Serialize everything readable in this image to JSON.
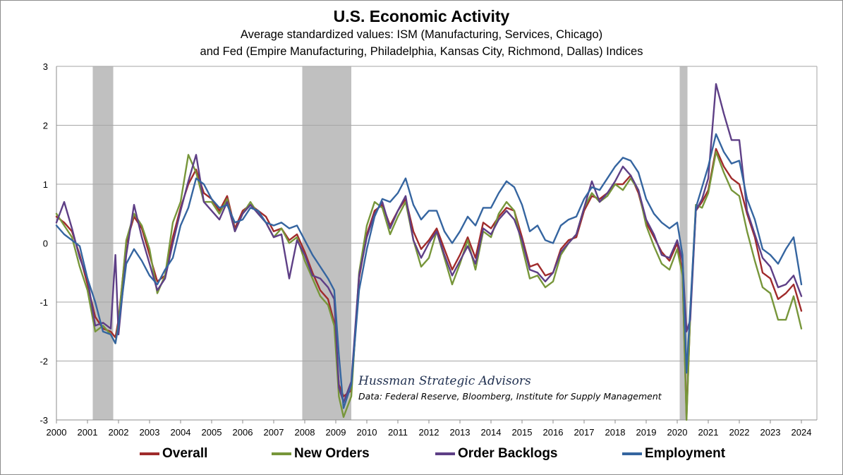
{
  "chart_data": {
    "type": "line",
    "title": "U.S. Economic Activity",
    "subtitle_line1": "Average standardized values: ISM (Manufacturing, Services, Chicago)",
    "subtitle_line2": "and Fed (Empire Manufacturing, Philadelphia, Kansas City, Richmond, Dallas) Indices",
    "x_tick_labels": [
      "2000",
      "2001",
      "2002",
      "2003",
      "2004",
      "2005",
      "2006",
      "2007",
      "2008",
      "2009",
      "2010",
      "2011",
      "2012",
      "2013",
      "2014",
      "2015",
      "2016",
      "2017",
      "2018",
      "2019",
      "2020",
      "2021",
      "2022",
      "2023",
      "2024"
    ],
    "y_tick_labels": [
      "3",
      "2",
      "1",
      "0",
      "-1",
      "-2",
      "-3"
    ],
    "xlim": [
      2000,
      2024.5
    ],
    "ylim": [
      -3,
      3
    ],
    "grid": "horizontal",
    "legend_position": "bottom",
    "recession_shading": [
      [
        2001.17,
        2001.83
      ],
      [
        2007.92,
        2009.5
      ],
      [
        2020.08,
        2020.33
      ]
    ],
    "annotation_title": "Hussman Strategic Advisors",
    "annotation_source": "Data: Federal Reserve, Bloomberg, Institute for Supply Management",
    "series": [
      {
        "name": "Overall",
        "color": "#a02b2b",
        "x": [
          2000.0,
          2000.25,
          2000.5,
          2000.75,
          2001.0,
          2001.25,
          2001.5,
          2001.75,
          2001.9,
          2002.0,
          2002.25,
          2002.5,
          2002.75,
          2003.0,
          2003.25,
          2003.5,
          2003.75,
          2004.0,
          2004.25,
          2004.5,
          2004.75,
          2005.0,
          2005.25,
          2005.5,
          2005.75,
          2006.0,
          2006.25,
          2006.5,
          2006.75,
          2007.0,
          2007.25,
          2007.5,
          2007.75,
          2008.0,
          2008.25,
          2008.5,
          2008.75,
          2008.95,
          2009.1,
          2009.25,
          2009.5,
          2009.75,
          2010.0,
          2010.25,
          2010.5,
          2010.75,
          2011.0,
          2011.25,
          2011.5,
          2011.75,
          2012.0,
          2012.25,
          2012.5,
          2012.75,
          2013.0,
          2013.25,
          2013.5,
          2013.75,
          2014.0,
          2014.25,
          2014.5,
          2014.75,
          2015.0,
          2015.25,
          2015.5,
          2015.75,
          2016.0,
          2016.25,
          2016.5,
          2016.75,
          2017.0,
          2017.25,
          2017.5,
          2017.75,
          2018.0,
          2018.25,
          2018.5,
          2018.75,
          2019.0,
          2019.25,
          2019.5,
          2019.75,
          2020.0,
          2020.17,
          2020.3,
          2020.42,
          2020.6,
          2020.8,
          2021.0,
          2021.25,
          2021.5,
          2021.75,
          2022.0,
          2022.25,
          2022.5,
          2022.75,
          2023.0,
          2023.25,
          2023.5,
          2023.75,
          2024.0
        ],
        "y": [
          0.45,
          0.35,
          0.2,
          -0.2,
          -0.7,
          -1.25,
          -1.45,
          -1.5,
          -1.6,
          -1.3,
          0.0,
          0.45,
          0.25,
          -0.2,
          -0.65,
          -0.55,
          0.1,
          0.6,
          1.0,
          1.25,
          0.85,
          0.75,
          0.55,
          0.8,
          0.25,
          0.55,
          0.65,
          0.55,
          0.45,
          0.2,
          0.25,
          0.05,
          0.15,
          -0.15,
          -0.5,
          -0.8,
          -0.95,
          -1.35,
          -2.4,
          -2.6,
          -2.5,
          -0.6,
          0.15,
          0.55,
          0.65,
          0.3,
          0.55,
          0.75,
          0.2,
          -0.1,
          0.05,
          0.25,
          -0.1,
          -0.45,
          -0.2,
          0.1,
          -0.25,
          0.35,
          0.25,
          0.45,
          0.6,
          0.55,
          0.1,
          -0.4,
          -0.35,
          -0.55,
          -0.5,
          -0.1,
          0.05,
          0.1,
          0.55,
          0.8,
          0.75,
          0.85,
          1.0,
          1.0,
          1.15,
          0.85,
          0.35,
          0.1,
          -0.15,
          -0.3,
          0.0,
          -0.5,
          -2.95,
          -1.2,
          0.55,
          0.7,
          0.9,
          1.6,
          1.3,
          1.1,
          1.0,
          0.5,
          0.1,
          -0.5,
          -0.6,
          -0.95,
          -0.85,
          -0.7,
          -1.15
        ]
      },
      {
        "name": "New Orders",
        "color": "#77963a",
        "x": [
          2000.0,
          2000.25,
          2000.5,
          2000.75,
          2001.0,
          2001.25,
          2001.5,
          2001.75,
          2001.9,
          2002.0,
          2002.25,
          2002.5,
          2002.75,
          2003.0,
          2003.25,
          2003.5,
          2003.75,
          2004.0,
          2004.25,
          2004.5,
          2004.75,
          2005.0,
          2005.25,
          2005.5,
          2005.75,
          2006.0,
          2006.25,
          2006.5,
          2006.75,
          2007.0,
          2007.25,
          2007.5,
          2007.75,
          2008.0,
          2008.25,
          2008.5,
          2008.75,
          2008.95,
          2009.1,
          2009.25,
          2009.5,
          2009.75,
          2010.0,
          2010.25,
          2010.5,
          2010.75,
          2011.0,
          2011.25,
          2011.5,
          2011.75,
          2012.0,
          2012.25,
          2012.5,
          2012.75,
          2013.0,
          2013.25,
          2013.5,
          2013.75,
          2014.0,
          2014.25,
          2014.5,
          2014.75,
          2015.0,
          2015.25,
          2015.5,
          2015.75,
          2016.0,
          2016.25,
          2016.5,
          2016.75,
          2017.0,
          2017.25,
          2017.5,
          2017.75,
          2018.0,
          2018.25,
          2018.5,
          2018.75,
          2019.0,
          2019.25,
          2019.5,
          2019.75,
          2020.0,
          2020.17,
          2020.3,
          2020.42,
          2020.6,
          2020.8,
          2021.0,
          2021.25,
          2021.5,
          2021.75,
          2022.0,
          2022.25,
          2022.5,
          2022.75,
          2023.0,
          2023.25,
          2023.5,
          2023.75,
          2024.0
        ],
        "y": [
          0.5,
          0.3,
          0.1,
          -0.4,
          -0.8,
          -1.5,
          -1.4,
          -1.55,
          -1.7,
          -1.35,
          0.05,
          0.5,
          0.3,
          -0.1,
          -0.85,
          -0.55,
          0.35,
          0.7,
          1.5,
          1.2,
          0.7,
          0.7,
          0.5,
          0.75,
          0.2,
          0.5,
          0.7,
          0.5,
          0.35,
          0.1,
          0.25,
          0.0,
          0.1,
          -0.3,
          -0.6,
          -0.9,
          -1.05,
          -1.4,
          -2.6,
          -2.95,
          -2.6,
          -0.5,
          0.3,
          0.7,
          0.6,
          0.15,
          0.45,
          0.7,
          0.05,
          -0.4,
          -0.25,
          0.2,
          -0.25,
          -0.7,
          -0.35,
          0.05,
          -0.45,
          0.2,
          0.1,
          0.5,
          0.7,
          0.55,
          -0.05,
          -0.6,
          -0.55,
          -0.75,
          -0.65,
          -0.2,
          0.0,
          0.15,
          0.6,
          0.85,
          0.7,
          0.8,
          1.0,
          0.9,
          1.1,
          0.9,
          0.3,
          -0.05,
          -0.35,
          -0.45,
          -0.1,
          -0.55,
          -3.0,
          -1.2,
          0.65,
          0.6,
          0.85,
          1.55,
          1.2,
          0.9,
          0.8,
          0.2,
          -0.3,
          -0.75,
          -0.85,
          -1.3,
          -1.3,
          -0.9,
          -1.45
        ]
      },
      {
        "name": "Order Backlogs",
        "color": "#5e3f86",
        "x": [
          2000.0,
          2000.25,
          2000.5,
          2000.75,
          2001.0,
          2001.25,
          2001.5,
          2001.75,
          2001.9,
          2002.0,
          2002.25,
          2002.5,
          2002.75,
          2003.0,
          2003.25,
          2003.5,
          2003.75,
          2004.0,
          2004.25,
          2004.5,
          2004.75,
          2005.0,
          2005.25,
          2005.5,
          2005.75,
          2006.0,
          2006.25,
          2006.5,
          2006.75,
          2007.0,
          2007.25,
          2007.5,
          2007.75,
          2008.0,
          2008.25,
          2008.5,
          2008.75,
          2008.95,
          2009.1,
          2009.25,
          2009.5,
          2009.75,
          2010.0,
          2010.25,
          2010.5,
          2010.75,
          2011.0,
          2011.25,
          2011.5,
          2011.75,
          2012.0,
          2012.25,
          2012.5,
          2012.75,
          2013.0,
          2013.25,
          2013.5,
          2013.75,
          2014.0,
          2014.25,
          2014.5,
          2014.75,
          2015.0,
          2015.25,
          2015.5,
          2015.75,
          2016.0,
          2016.25,
          2016.5,
          2016.75,
          2017.0,
          2017.25,
          2017.5,
          2017.75,
          2018.0,
          2018.25,
          2018.5,
          2018.75,
          2019.0,
          2019.25,
          2019.5,
          2019.75,
          2020.0,
          2020.17,
          2020.3,
          2020.42,
          2020.6,
          2020.8,
          2021.0,
          2021.25,
          2021.5,
          2021.75,
          2022.0,
          2022.25,
          2022.5,
          2022.75,
          2023.0,
          2023.25,
          2023.5,
          2023.75,
          2024.0
        ],
        "y": [
          0.35,
          0.7,
          0.25,
          -0.25,
          -0.6,
          -1.4,
          -1.35,
          -1.45,
          -0.2,
          -1.55,
          -0.2,
          0.65,
          0.1,
          -0.35,
          -0.8,
          -0.6,
          0.0,
          0.55,
          1.05,
          1.5,
          0.7,
          0.55,
          0.4,
          0.7,
          0.2,
          0.5,
          0.65,
          0.5,
          0.35,
          0.1,
          0.15,
          -0.6,
          0.05,
          -0.2,
          -0.55,
          -0.6,
          -0.75,
          -0.95,
          -2.45,
          -2.7,
          -2.35,
          -0.55,
          0.1,
          0.5,
          0.7,
          0.25,
          0.55,
          0.8,
          0.05,
          -0.25,
          0.0,
          0.2,
          -0.2,
          -0.55,
          -0.3,
          -0.05,
          -0.35,
          0.25,
          0.15,
          0.4,
          0.55,
          0.4,
          0.05,
          -0.45,
          -0.5,
          -0.65,
          -0.5,
          -0.15,
          0.0,
          0.15,
          0.6,
          1.05,
          0.7,
          0.85,
          1.05,
          1.3,
          1.15,
          0.9,
          0.4,
          0.15,
          -0.2,
          -0.25,
          0.05,
          -0.3,
          -1.5,
          -1.3,
          0.55,
          0.75,
          1.1,
          2.7,
          2.2,
          1.75,
          1.75,
          0.55,
          0.15,
          -0.25,
          -0.4,
          -0.75,
          -0.7,
          -0.55,
          -0.9
        ]
      },
      {
        "name": "Employment",
        "color": "#3565a0",
        "x": [
          2000.0,
          2000.25,
          2000.5,
          2000.75,
          2001.0,
          2001.25,
          2001.5,
          2001.75,
          2001.9,
          2002.0,
          2002.25,
          2002.5,
          2002.75,
          2003.0,
          2003.25,
          2003.5,
          2003.75,
          2004.0,
          2004.25,
          2004.5,
          2004.75,
          2005.0,
          2005.25,
          2005.5,
          2005.75,
          2006.0,
          2006.25,
          2006.5,
          2006.75,
          2007.0,
          2007.25,
          2007.5,
          2007.75,
          2008.0,
          2008.25,
          2008.5,
          2008.75,
          2008.95,
          2009.1,
          2009.25,
          2009.5,
          2009.75,
          2010.0,
          2010.25,
          2010.5,
          2010.75,
          2011.0,
          2011.25,
          2011.5,
          2011.75,
          2012.0,
          2012.25,
          2012.5,
          2012.75,
          2013.0,
          2013.25,
          2013.5,
          2013.75,
          2014.0,
          2014.25,
          2014.5,
          2014.75,
          2015.0,
          2015.25,
          2015.5,
          2015.75,
          2016.0,
          2016.25,
          2016.5,
          2016.75,
          2017.0,
          2017.25,
          2017.5,
          2017.75,
          2018.0,
          2018.25,
          2018.5,
          2018.75,
          2019.0,
          2019.25,
          2019.5,
          2019.75,
          2020.0,
          2020.17,
          2020.3,
          2020.42,
          2020.6,
          2020.8,
          2021.0,
          2021.25,
          2021.5,
          2021.75,
          2022.0,
          2022.25,
          2022.5,
          2022.75,
          2023.0,
          2023.25,
          2023.5,
          2023.75,
          2024.0
        ],
        "y": [
          0.3,
          0.15,
          0.05,
          -0.05,
          -0.6,
          -1.0,
          -1.5,
          -1.55,
          -1.7,
          -1.4,
          -0.35,
          -0.1,
          -0.3,
          -0.55,
          -0.7,
          -0.45,
          -0.25,
          0.3,
          0.6,
          1.1,
          1.0,
          0.75,
          0.6,
          0.65,
          0.35,
          0.4,
          0.6,
          0.55,
          0.35,
          0.3,
          0.35,
          0.25,
          0.3,
          0.05,
          -0.2,
          -0.4,
          -0.6,
          -0.8,
          -1.9,
          -2.8,
          -2.4,
          -0.8,
          -0.1,
          0.45,
          0.75,
          0.7,
          0.85,
          1.1,
          0.65,
          0.4,
          0.55,
          0.55,
          0.2,
          0.0,
          0.2,
          0.45,
          0.3,
          0.6,
          0.6,
          0.85,
          1.05,
          0.95,
          0.65,
          0.2,
          0.3,
          0.05,
          0.0,
          0.3,
          0.4,
          0.45,
          0.75,
          0.95,
          0.9,
          1.1,
          1.3,
          1.45,
          1.4,
          1.2,
          0.75,
          0.5,
          0.35,
          0.25,
          0.35,
          -0.2,
          -2.2,
          -1.1,
          0.6,
          0.95,
          1.3,
          1.85,
          1.55,
          1.35,
          1.4,
          0.75,
          0.4,
          -0.1,
          -0.2,
          -0.35,
          -0.1,
          0.1,
          -0.7
        ]
      }
    ]
  }
}
